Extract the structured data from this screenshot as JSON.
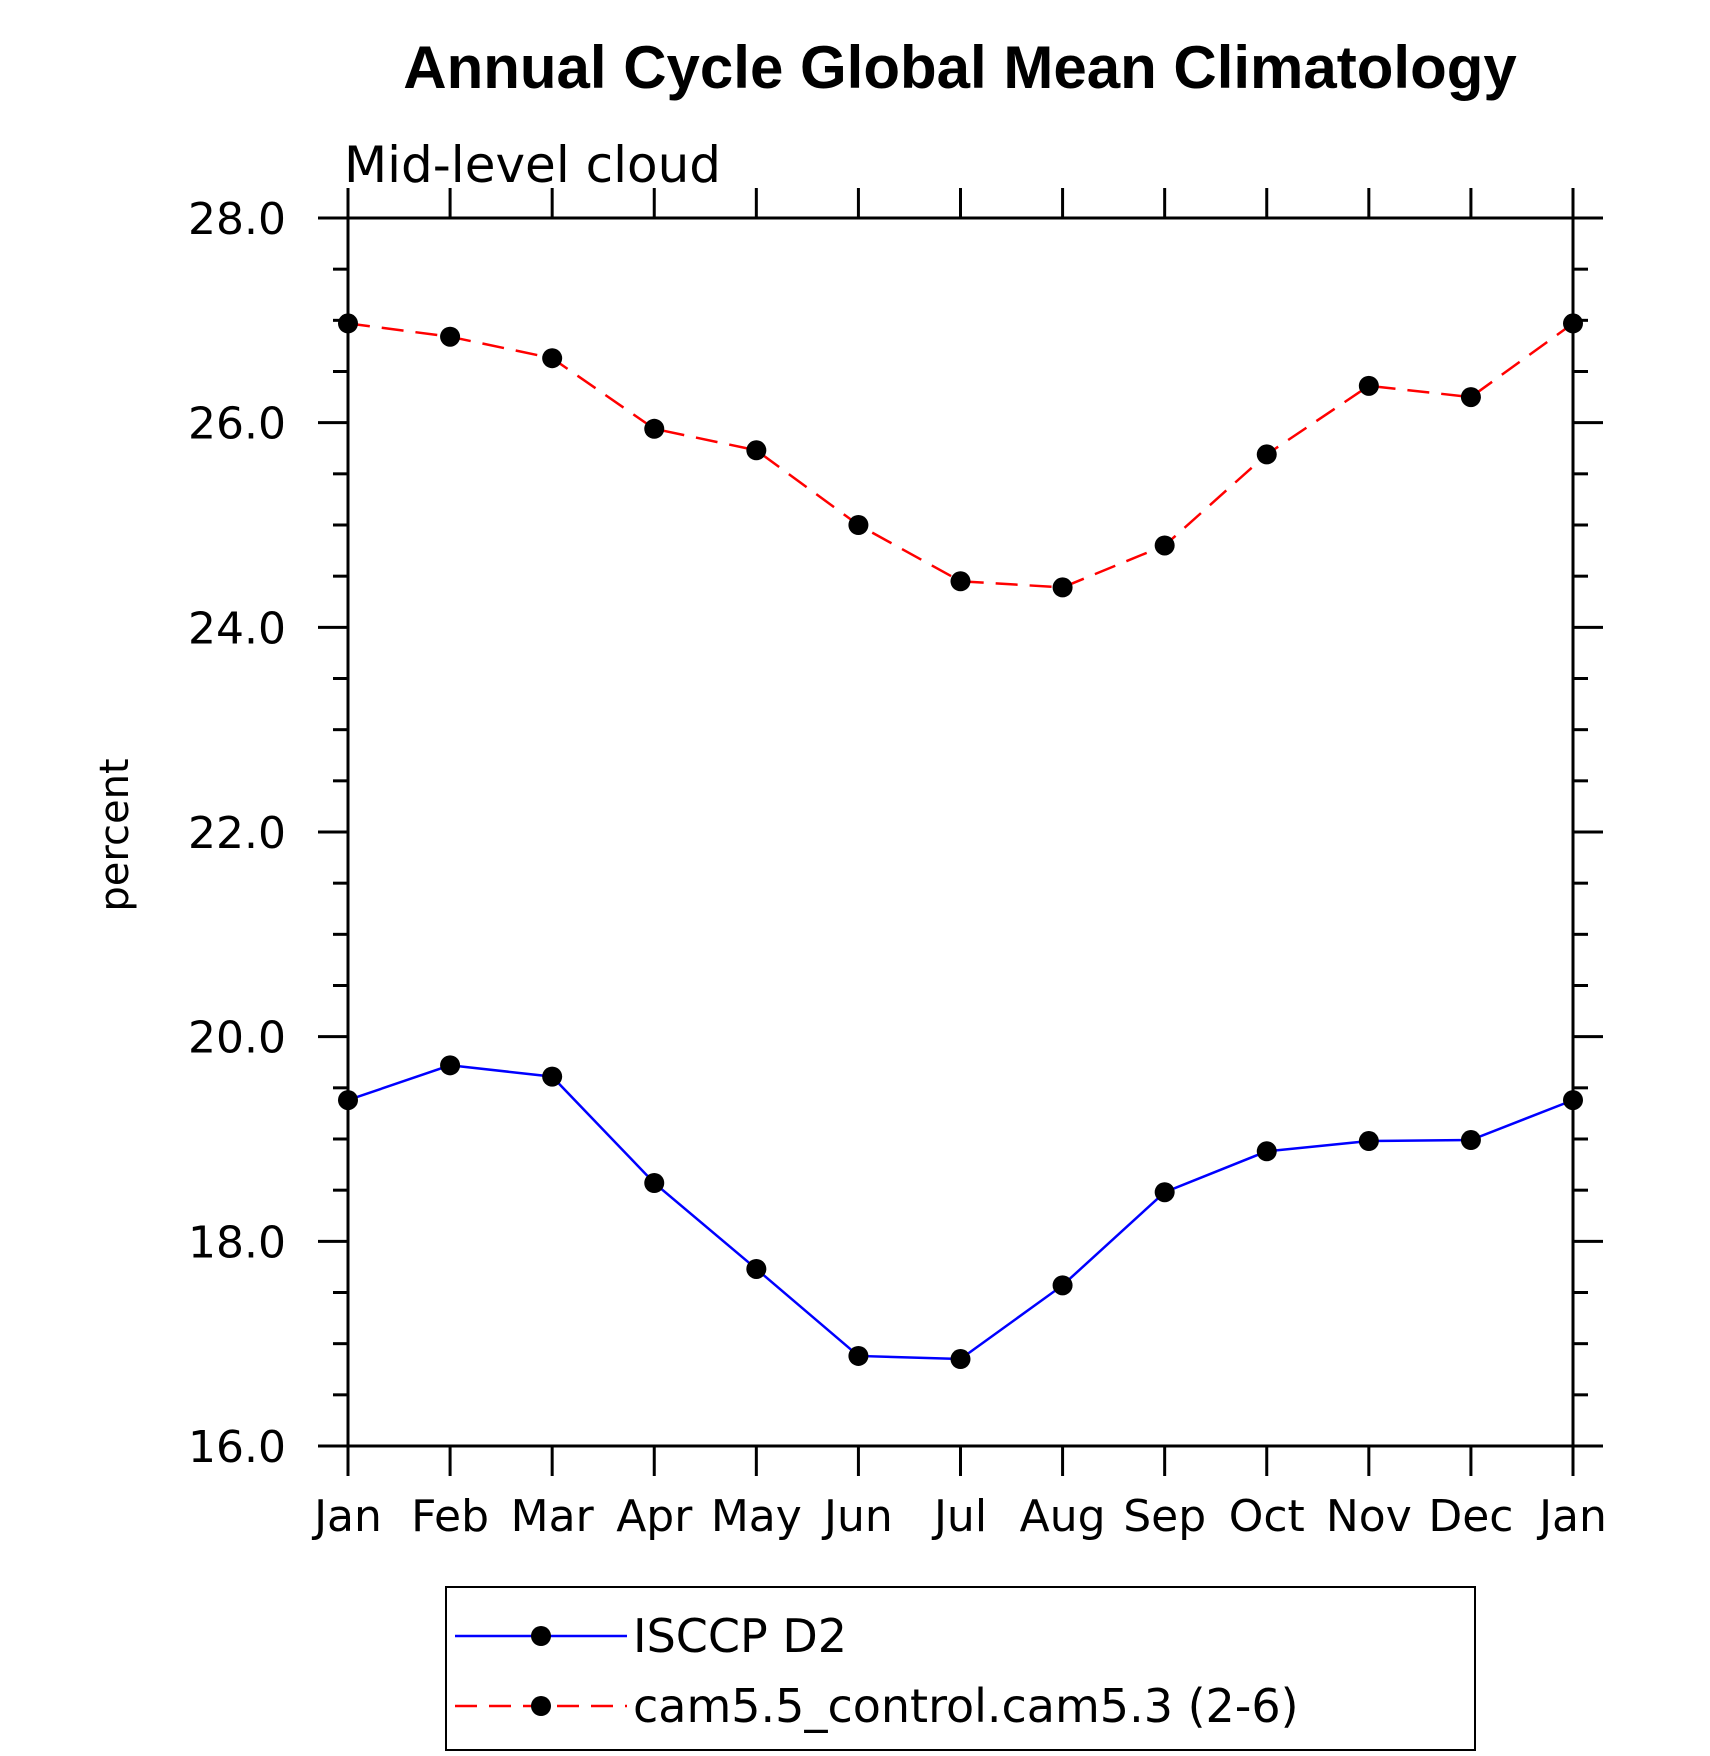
{
  "chart_data": {
    "type": "line",
    "title": "Annual Cycle Global Mean Climatology",
    "subtitle": "Mid-level cloud",
    "xlabel": "",
    "ylabel": "percent",
    "categories": [
      "Jan",
      "Feb",
      "Mar",
      "Apr",
      "May",
      "Jun",
      "Jul",
      "Aug",
      "Sep",
      "Oct",
      "Nov",
      "Dec",
      "Jan"
    ],
    "ylim": [
      16.0,
      28.0
    ],
    "yticks": [
      "16.0",
      "18.0",
      "20.0",
      "22.0",
      "24.0",
      "26.0",
      "28.0"
    ],
    "grid": false,
    "legend_position": "bottom",
    "series": [
      {
        "name": "ISCCP D2",
        "color": "#0000ff",
        "dash": "solid",
        "marker": "filled-circle",
        "values": [
          19.38,
          19.72,
          19.61,
          18.57,
          17.73,
          16.88,
          16.85,
          17.57,
          18.48,
          18.88,
          18.98,
          18.99,
          19.38
        ]
      },
      {
        "name": "cam5.5_control.cam5.3 (2-6)",
        "color": "#ff0000",
        "dash": "dashed",
        "marker": "filled-circle",
        "values": [
          26.97,
          26.84,
          26.63,
          25.94,
          25.73,
          25.0,
          24.45,
          24.39,
          24.8,
          25.69,
          26.36,
          26.25,
          26.97
        ]
      }
    ]
  }
}
